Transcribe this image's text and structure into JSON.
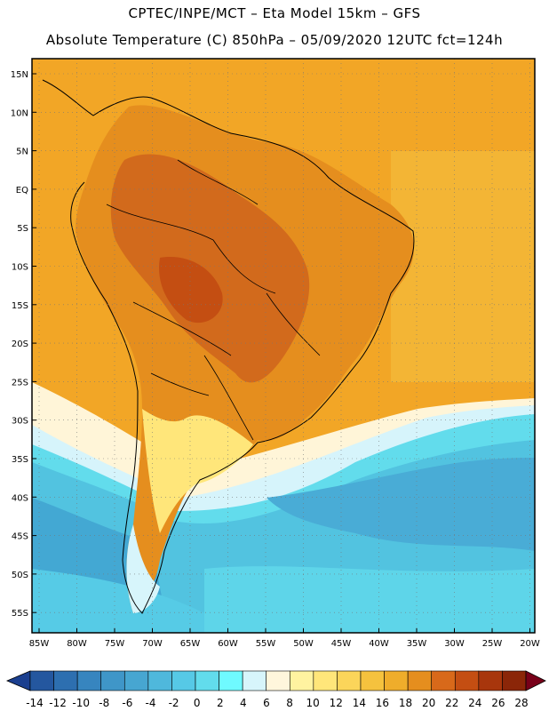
{
  "header": {
    "line1": "CPTEC/INPE/MCT –  Eta Model 15km – GFS",
    "line2": "Absolute Temperature (C) 850hPa – 05/09/2020 12UTC fct=124h"
  },
  "map": {
    "lat_labels": [
      "15N",
      "10N",
      "5N",
      "EQ",
      "5S",
      "10S",
      "15S",
      "20S",
      "25S",
      "30S",
      "35S",
      "40S",
      "45S",
      "50S",
      "55S"
    ],
    "lon_labels": [
      "85W",
      "80W",
      "75W",
      "70W",
      "65W",
      "60W",
      "55W",
      "50W",
      "45W",
      "40W",
      "35W",
      "30W",
      "25W",
      "20W"
    ],
    "background_color": "#f2a626"
  },
  "colorbar": {
    "labels": [
      "-14",
      "-12",
      "-10",
      "-8",
      "-6",
      "-4",
      "-2",
      "0",
      "2",
      "4",
      "6",
      "8",
      "10",
      "12",
      "14",
      "16",
      "18",
      "20",
      "22",
      "24",
      "26",
      "28"
    ],
    "colors": [
      "#1b3f8f",
      "#24579f",
      "#2d6fb0",
      "#3785bf",
      "#3f96c8",
      "#47a6d1",
      "#4fb8dc",
      "#56c9e6",
      "#62dcec",
      "#6ffaff",
      "#d7f5fb",
      "#fff6dc",
      "#fff3a0",
      "#ffe67a",
      "#fbd55a",
      "#f5c23e",
      "#efad2b",
      "#e58e1e",
      "#d8691a",
      "#c44e12",
      "#a8360c",
      "#8b2608",
      "#780019"
    ]
  }
}
